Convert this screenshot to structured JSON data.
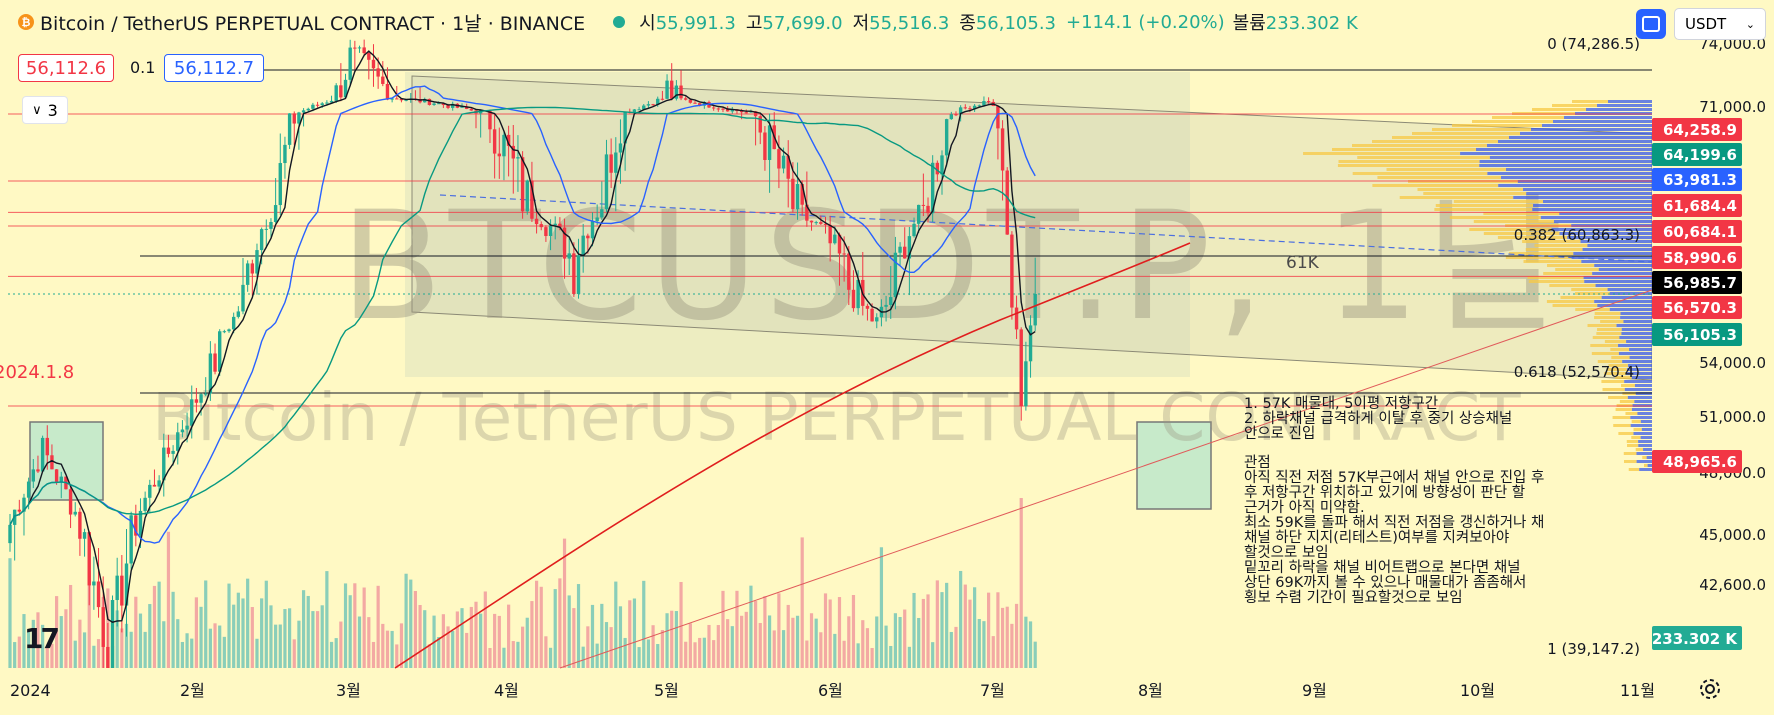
{
  "header": {
    "title": "Bitcoin / TetherUS PERPETUAL CONTRACT · 1날 · BINANCE",
    "coin_glyph": "₿",
    "open_label": "시",
    "open": "55,991.3",
    "high_label": "고",
    "high": "57,699.0",
    "low_label": "저",
    "low": "55,516.3",
    "close_label": "종",
    "close": "56,105.3",
    "change": "+114.1 (+0.20%)",
    "volume_label": "볼륨",
    "volume": "233.302 K",
    "currency": "USDT",
    "bid": "56,112.6",
    "spread": "0.1",
    "ask": "56,112.7",
    "indicators_count": "3"
  },
  "watermark": {
    "symbol": "BTCUSDT.P, 1날",
    "name": "Bitcoin / TetherUS PERPETUAL CONTRACT"
  },
  "colors": {
    "background": "#fff9c4",
    "up": "#22ab94",
    "down": "#f23645",
    "ma_short": "#131722",
    "ma_mid": "#2962ff",
    "ma_long": "#089981",
    "ma_200": "#e01e1e",
    "profile_up": "#3a5be8",
    "profile_down": "#f7c844"
  },
  "notes": [
    "1. 57K 매물대, 5이평 저항구간",
    "2. 하락채널 급격하게 이탈 후 중기 상승채널",
    "안으로 진입",
    "",
    "관점",
    "아직 직전 저점 57K부근에서 채널 안으로 진입 후",
    "후 저항구간 위치하고 있기에 방향성이 판단 할",
    "근거가 아직 미약함.",
    "최소 59K를 돌파 해서 직전 저점을 갱신하거나 채",
    "채널  하단 지지(리테스트)여부를 지켜보아야",
    "할것으로 보임",
    "밑꼬리 하락을 채널 비어트랩으로 본다면 채널",
    "상단 69K까지 볼 수 있으나 매물대가 좀좀해서",
    "횡보 수렴 기간이 필요할것으로 보임"
  ],
  "chart_data": {
    "type": "candlestick",
    "title": "Bitcoin / TetherUS PERPETUAL CONTRACT · 1날 · BINANCE",
    "date_label": "2024.1.8",
    "y_axis_ticks": [
      "74,000.0",
      "71,000.0",
      "54,000.0",
      "51,000.0",
      "48,000.0",
      "45,000.0",
      "42,600.0"
    ],
    "x_axis_labels": [
      "2024",
      "2월",
      "3월",
      "4월",
      "5월",
      "6월",
      "7월",
      "8월",
      "9월",
      "10월",
      "11월"
    ],
    "price_tags": [
      {
        "value": "64,258.9",
        "color": "#f23645"
      },
      {
        "value": "64,199.6",
        "color": "#089981"
      },
      {
        "value": "63,981.3",
        "color": "#2962ff"
      },
      {
        "value": "61,684.4",
        "color": "#f23645"
      },
      {
        "value": "60,684.1",
        "color": "#f23645"
      },
      {
        "value": "58,990.6",
        "color": "#f23645"
      },
      {
        "value": "56,985.7",
        "color": "#000000"
      },
      {
        "value": "56,570.3",
        "color": "#f23645"
      },
      {
        "value": "56,105.3",
        "color": "#089981"
      },
      {
        "value": "48,965.6",
        "color": "#f23645"
      }
    ],
    "volume_tag": "233.302 K",
    "fib_levels": [
      {
        "label": "0 (74,286.5)"
      },
      {
        "label": "0.382 (60,863.3)"
      },
      {
        "label": "0.618 (52,570.4)"
      },
      {
        "label": "1 (39,147.2)"
      }
    ],
    "level_label": "61K",
    "key_points": [
      {
        "date": "2024-01-01",
        "price": 42500
      },
      {
        "date": "2024-01-08",
        "price": 46500
      },
      {
        "date": "2024-01-22",
        "price": 39600
      },
      {
        "date": "2024-02-15",
        "price": 52000
      },
      {
        "date": "2024-03-14",
        "price": 73500
      },
      {
        "date": "2024-04-01",
        "price": 69000
      },
      {
        "date": "2024-05-01",
        "price": 57000
      },
      {
        "date": "2024-05-21",
        "price": 71500
      },
      {
        "date": "2024-07-05",
        "price": 54000
      },
      {
        "date": "2024-07-29",
        "price": 70000
      },
      {
        "date": "2024-08-05",
        "price": 49500
      },
      {
        "date": "2024-08-08",
        "price": 56105.3
      }
    ]
  }
}
